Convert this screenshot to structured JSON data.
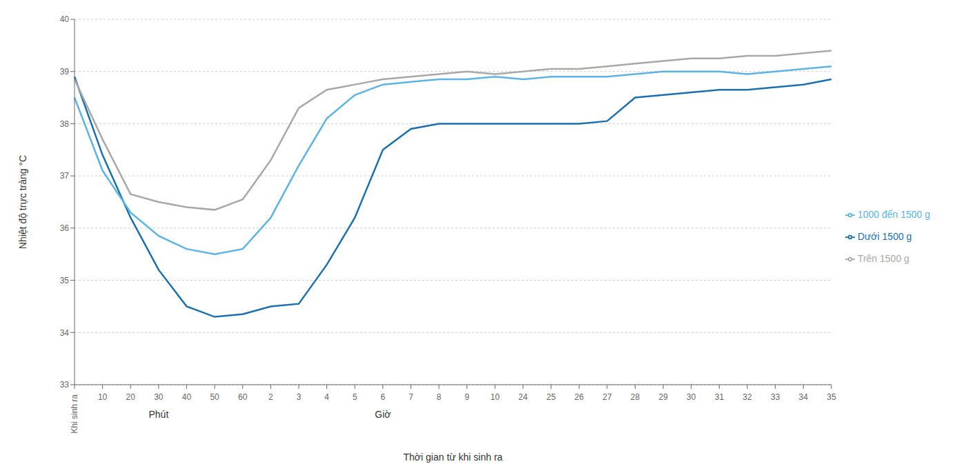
{
  "chart_data": {
    "type": "line",
    "title": "",
    "xlabel": "Thời gian từ khi sinh ra",
    "ylabel": "Nhiệt độ trực tràng °C",
    "categories": [
      "Khi sinh ra",
      "10",
      "20",
      "30",
      "40",
      "50",
      "60",
      "2",
      "3",
      "4",
      "5",
      "6",
      "7",
      "8",
      "9",
      "10",
      "24",
      "25",
      "26",
      "27",
      "28",
      "29",
      "30",
      "31",
      "32",
      "33",
      "34",
      "35"
    ],
    "series": [
      {
        "name": "Dưới 1500 g",
        "color": "#1a6faf",
        "values": [
          38.9,
          37.4,
          36.2,
          35.2,
          34.5,
          34.3,
          34.35,
          34.5,
          34.55,
          35.3,
          36.2,
          37.5,
          37.9,
          38.0,
          38.0,
          38.0,
          38.0,
          38.0,
          38.0,
          38.05,
          38.5,
          38.55,
          38.6,
          38.65,
          38.65,
          38.7,
          38.75,
          38.85
        ]
      },
      {
        "name": "1000 đến 1500 g",
        "color": "#5bb4e5",
        "values": [
          38.5,
          37.1,
          36.3,
          35.85,
          35.6,
          35.5,
          35.6,
          36.2,
          37.2,
          38.1,
          38.55,
          38.75,
          38.8,
          38.85,
          38.85,
          38.9,
          38.85,
          38.9,
          38.9,
          38.9,
          38.95,
          39.0,
          39.0,
          39.0,
          38.95,
          39.0,
          39.05,
          39.1
        ]
      },
      {
        "name": "Trên 1500 g",
        "color": "#a8a8a8",
        "values": [
          38.85,
          37.7,
          36.65,
          36.5,
          36.4,
          36.35,
          36.55,
          37.3,
          38.3,
          38.65,
          38.75,
          38.85,
          38.9,
          38.95,
          39.0,
          38.95,
          39.0,
          39.05,
          39.05,
          39.1,
          39.15,
          39.2,
          39.25,
          39.25,
          39.3,
          39.3,
          39.35,
          39.4
        ]
      }
    ],
    "ylim": [
      33,
      40
    ],
    "yticks": [
      33,
      34,
      35,
      36,
      37,
      38,
      39,
      40
    ],
    "grid": true,
    "legend": "right",
    "annotations": [
      "Phút",
      "Giờ"
    ]
  }
}
